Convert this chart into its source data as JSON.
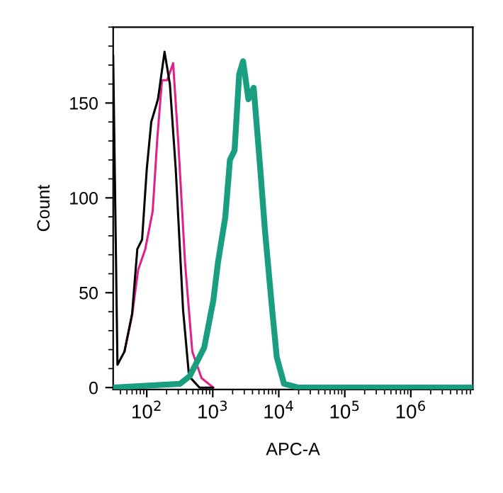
{
  "chart_data": {
    "type": "line",
    "xlabel": "APC-A",
    "ylabel": "Count",
    "log": "x",
    "grid": false,
    "legend": false,
    "marker": "none",
    "line_style": "solid",
    "xlim": [
      31,
      8700000
    ],
    "xticks": [
      {
        "value": 100,
        "label": "10$^{2}$"
      },
      {
        "value": 1000,
        "label": "10$^{3}$"
      },
      {
        "value": 10000,
        "label": "10$^{4}$"
      },
      {
        "value": 100000,
        "label": "10$^{5}$"
      },
      {
        "value": 1000000,
        "label": "10$^{6}$"
      }
    ],
    "ylim": [
      -1,
      190
    ],
    "yticks": [
      0,
      50,
      100,
      150
    ],
    "series": [
      {
        "color": "#000000",
        "x": [
          31,
          36,
          46,
          60,
          72,
          85,
          100,
          117,
          148,
          186,
          224,
          275,
          355,
          437,
          630,
          1000
        ],
        "values": [
          175,
          12,
          19,
          39,
          73,
          78,
          115,
          140,
          152,
          177,
          160,
          115,
          41,
          6,
          0,
          0
        ]
      },
      {
        "color": "#e0218a",
        "x": [
          46,
          60,
          74,
          95,
          123,
          145,
          170,
          204,
          251,
          302,
          380,
          490,
          676,
          1020
        ],
        "values": [
          19,
          38,
          62,
          73,
          93,
          132,
          162,
          162,
          171,
          128,
          66,
          19,
          5,
          0
        ]
      },
      {
        "color": "#1a9e80",
        "x": [
          31,
          320,
          447,
          741,
          1020,
          1200,
          1550,
          1820,
          2140,
          2510,
          2880,
          3470,
          4170,
          4470,
          5250,
          6170,
          7940,
          9330,
          12000,
          20000,
          8700000
        ],
        "values": [
          0,
          2,
          6,
          21,
          46,
          66,
          90,
          120,
          125,
          165,
          172,
          152,
          158,
          145,
          115,
          83,
          41,
          16,
          2,
          0,
          0
        ]
      }
    ]
  }
}
